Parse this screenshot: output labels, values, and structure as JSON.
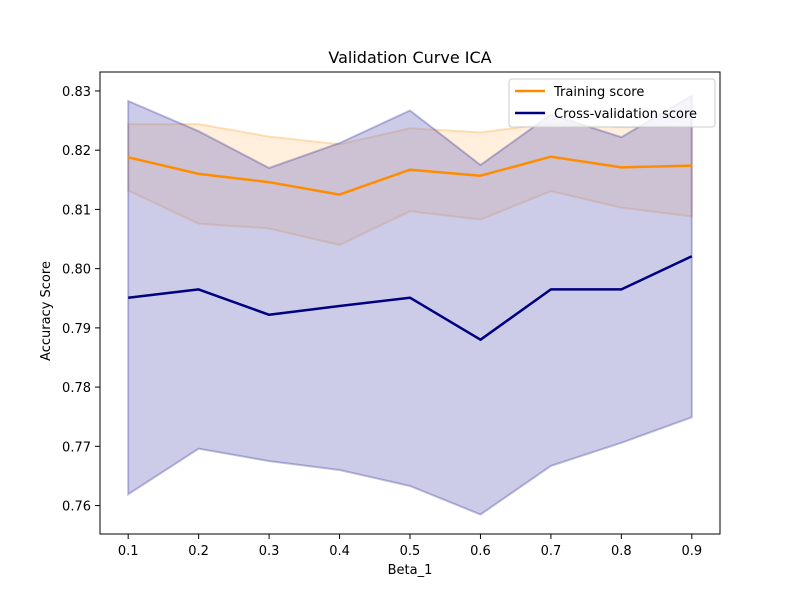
{
  "chart_data": {
    "type": "line",
    "title": "Validation Curve ICA",
    "xlabel": "Beta_1",
    "ylabel": "Accuracy Score",
    "x": [
      0.1,
      0.2,
      0.3,
      0.4,
      0.5,
      0.6,
      0.7,
      0.8,
      0.9
    ],
    "xticks": [
      "0.1",
      "0.2",
      "0.3",
      "0.4",
      "0.5",
      "0.6",
      "0.7",
      "0.8",
      "0.9"
    ],
    "yticks": [
      "0.76",
      "0.77",
      "0.78",
      "0.79",
      "0.80",
      "0.81",
      "0.82",
      "0.83"
    ],
    "xlim": [
      0.06,
      0.94
    ],
    "ylim": [
      0.7552,
      0.8332
    ],
    "grid": false,
    "legend_position": "upper right",
    "series": [
      {
        "name": "Training score",
        "color": "#ff8c00",
        "fill_color": "#ffd8a8",
        "values": [
          0.8188,
          0.816,
          0.8146,
          0.8125,
          0.8167,
          0.8157,
          0.8189,
          0.8171,
          0.8174
        ],
        "upper": [
          0.8244,
          0.8244,
          0.8223,
          0.821,
          0.8237,
          0.823,
          0.8245,
          0.8239,
          0.824
        ],
        "lower": [
          0.8132,
          0.8076,
          0.8068,
          0.804,
          0.8097,
          0.8083,
          0.8131,
          0.8103,
          0.8088
        ]
      },
      {
        "name": "Cross-validation score",
        "color": "#000080",
        "fill_color": "#8080c8",
        "values": [
          0.7951,
          0.7965,
          0.7922,
          0.7937,
          0.7951,
          0.788,
          0.7965,
          0.7965,
          0.8021
        ],
        "upper": [
          0.8283,
          0.8232,
          0.817,
          0.8212,
          0.8267,
          0.8175,
          0.826,
          0.8222,
          0.8292
        ],
        "lower": [
          0.7619,
          0.7696,
          0.7675,
          0.766,
          0.7633,
          0.7585,
          0.7667,
          0.7706,
          0.7749
        ]
      }
    ]
  }
}
